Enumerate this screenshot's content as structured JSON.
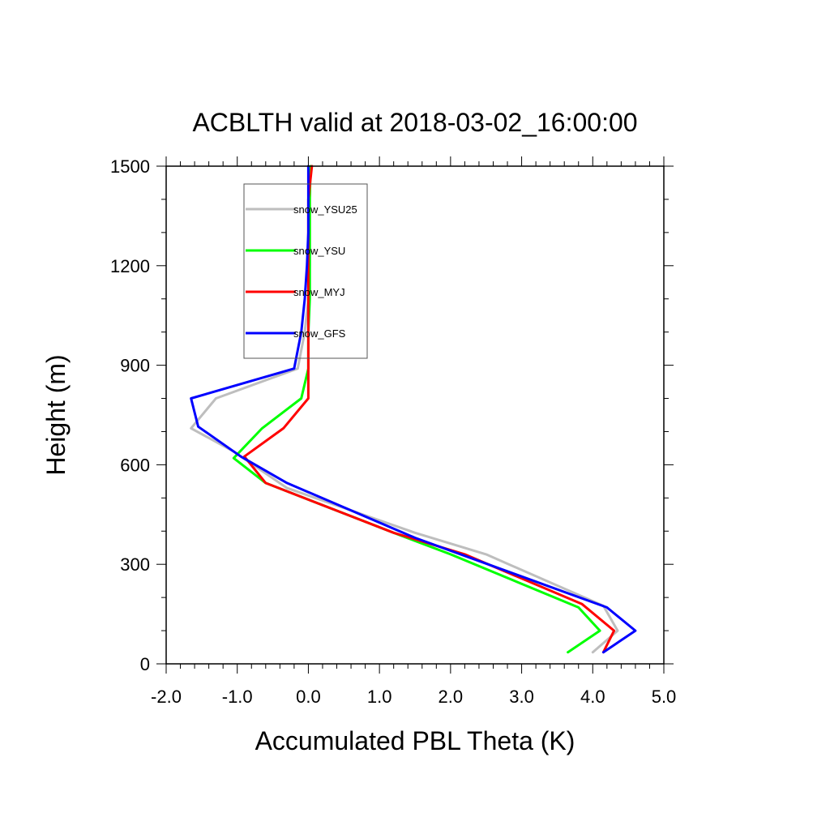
{
  "chart_data": {
    "type": "line",
    "title": "ACBLTH valid at 2018-03-02_16:00:00",
    "xlabel": "Accumulated PBL Theta (K)",
    "ylabel": "Height (m)",
    "xlim": [
      -2.0,
      5.0
    ],
    "ylim": [
      0,
      1500
    ],
    "xticks": [
      -2.0,
      -1.0,
      0.0,
      1.0,
      2.0,
      3.0,
      4.0,
      5.0
    ],
    "xtick_labels": [
      "-2.0",
      "-1.0",
      "0.0",
      "1.0",
      "2.0",
      "3.0",
      "4.0",
      "5.0"
    ],
    "yticks": [
      0,
      300,
      600,
      900,
      1200,
      1500
    ],
    "ytick_labels": [
      "0",
      "300",
      "600",
      "900",
      "1200",
      "1500"
    ],
    "grid": false,
    "legend_position": "top-left",
    "series": [
      {
        "name": "snow_YSU25",
        "color": "#bebebe",
        "points": [
          [
            4.0,
            35
          ],
          [
            4.35,
            100
          ],
          [
            4.15,
            175
          ],
          [
            2.5,
            330
          ],
          [
            1.5,
            395
          ],
          [
            -0.3,
            530
          ],
          [
            -1.05,
            640
          ],
          [
            -1.65,
            710
          ],
          [
            -1.3,
            800
          ],
          [
            -0.15,
            890
          ],
          [
            -0.05,
            1000
          ],
          [
            0.0,
            1100
          ],
          [
            0.02,
            1200
          ],
          [
            0.02,
            1300
          ],
          [
            0.02,
            1400
          ],
          [
            0.03,
            1500
          ]
        ]
      },
      {
        "name": "snow_YSU",
        "color": "#00ff00",
        "points": [
          [
            3.65,
            35
          ],
          [
            4.1,
            100
          ],
          [
            3.8,
            170
          ],
          [
            2.0,
            330
          ],
          [
            1.2,
            395
          ],
          [
            -0.6,
            545
          ],
          [
            -1.05,
            620
          ],
          [
            -0.65,
            710
          ],
          [
            -0.1,
            800
          ],
          [
            0.0,
            890
          ],
          [
            0.0,
            1000
          ],
          [
            0.02,
            1100
          ],
          [
            0.02,
            1200
          ],
          [
            0.02,
            1300
          ],
          [
            0.02,
            1400
          ],
          [
            0.03,
            1500
          ]
        ]
      },
      {
        "name": "snow_MYJ",
        "color": "#ff0000",
        "points": [
          [
            4.15,
            35
          ],
          [
            4.3,
            100
          ],
          [
            3.85,
            180
          ],
          [
            2.2,
            330
          ],
          [
            1.2,
            395
          ],
          [
            -0.6,
            545
          ],
          [
            -0.9,
            625
          ],
          [
            -0.35,
            710
          ],
          [
            0.0,
            800
          ],
          [
            0.0,
            890
          ],
          [
            0.0,
            1000
          ],
          [
            0.0,
            1100
          ],
          [
            0.0,
            1200
          ],
          [
            0.0,
            1300
          ],
          [
            0.0,
            1400
          ],
          [
            0.05,
            1500
          ]
        ]
      },
      {
        "name": "snow_GFS",
        "color": "#0000ff",
        "points": [
          [
            4.15,
            35
          ],
          [
            4.6,
            100
          ],
          [
            4.2,
            170
          ],
          [
            1.5,
            380
          ],
          [
            -0.3,
            545
          ],
          [
            -0.95,
            625
          ],
          [
            -1.55,
            715
          ],
          [
            -1.65,
            800
          ],
          [
            -0.2,
            890
          ],
          [
            -0.1,
            1000
          ],
          [
            -0.05,
            1100
          ],
          [
            -0.02,
            1200
          ],
          [
            0.0,
            1300
          ],
          [
            0.0,
            1400
          ],
          [
            0.0,
            1500
          ]
        ]
      }
    ]
  }
}
